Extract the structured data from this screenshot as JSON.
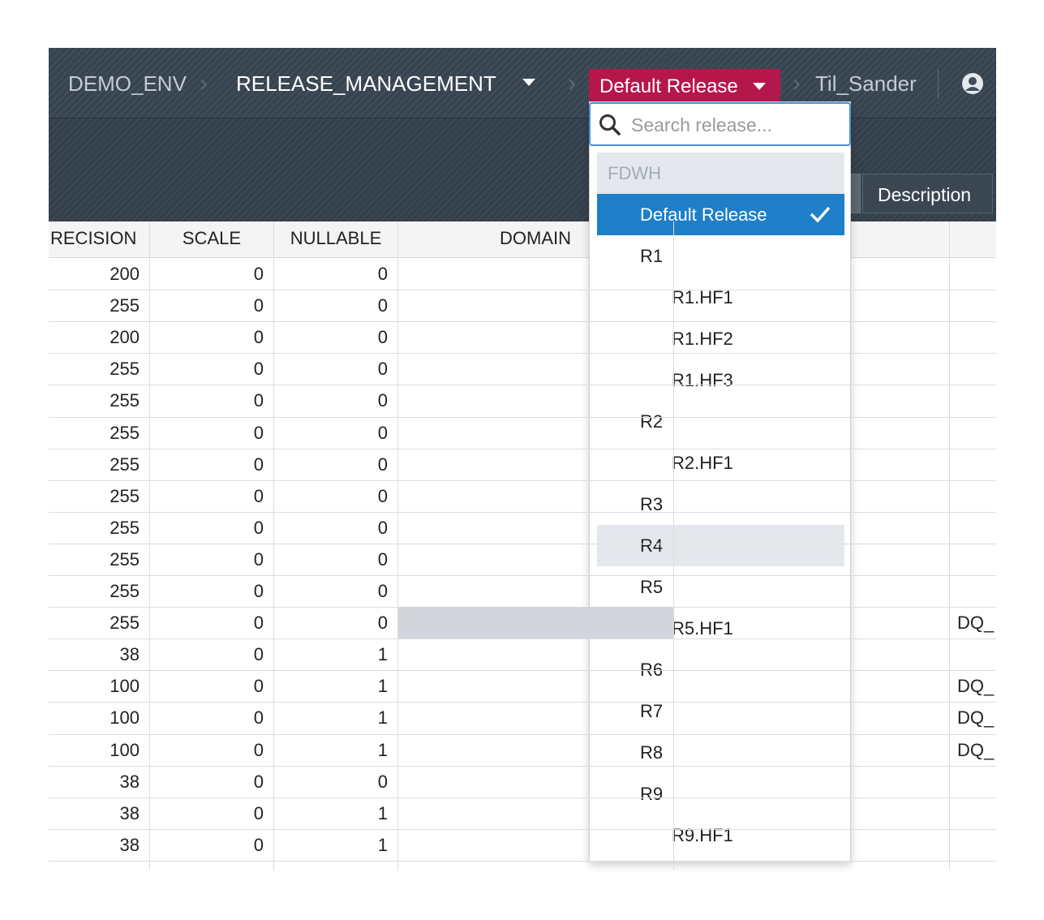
{
  "header": {
    "environment": "DEMO_ENV",
    "project": "RELEASE_MANAGEMENT",
    "release": "Default Release",
    "user": "Til_Sander"
  },
  "tabs": {
    "description": "Description"
  },
  "table": {
    "columns": [
      "RECISION",
      "SCALE",
      "NULLABLE",
      "DOMAIN"
    ],
    "rows": [
      {
        "precision": 200,
        "scale": 0,
        "nullable": 0
      },
      {
        "precision": 255,
        "scale": 0,
        "nullable": 0
      },
      {
        "precision": 200,
        "scale": 0,
        "nullable": 0
      },
      {
        "precision": 255,
        "scale": 0,
        "nullable": 0
      },
      {
        "precision": 255,
        "scale": 0,
        "nullable": 0
      },
      {
        "precision": 255,
        "scale": 0,
        "nullable": 0
      },
      {
        "precision": 255,
        "scale": 0,
        "nullable": 0
      },
      {
        "precision": 255,
        "scale": 0,
        "nullable": 0
      },
      {
        "precision": 255,
        "scale": 0,
        "nullable": 0
      },
      {
        "precision": 255,
        "scale": 0,
        "nullable": 0
      },
      {
        "precision": 255,
        "scale": 0,
        "nullable": 0
      },
      {
        "precision": 255,
        "scale": 0,
        "nullable": 0,
        "rule": "DQ_",
        "highlighted": true
      },
      {
        "precision": 38,
        "scale": 0,
        "nullable": 1
      },
      {
        "precision": 100,
        "scale": 0,
        "nullable": 1,
        "rule": "DQ_"
      },
      {
        "precision": 100,
        "scale": 0,
        "nullable": 1,
        "rule": "DQ_"
      },
      {
        "precision": 100,
        "scale": 0,
        "nullable": 1,
        "rule": "DQ_"
      },
      {
        "precision": 38,
        "scale": 0,
        "nullable": 0
      },
      {
        "precision": 38,
        "scale": 0,
        "nullable": 1
      },
      {
        "precision": 38,
        "scale": 0,
        "nullable": 1
      }
    ]
  },
  "dropdown": {
    "placeholder": "Search release...",
    "group": "FDWH",
    "releases": [
      {
        "label": "Default Release"
      },
      {
        "label": "R1",
        "children": [
          "R1.HF1",
          "R1.HF2",
          "R1.HF3"
        ]
      },
      {
        "label": "R2",
        "children": [
          "R2.HF1"
        ]
      },
      {
        "label": "R3"
      },
      {
        "label": "R4",
        "hovered": true
      },
      {
        "label": "R5",
        "children": [
          "R5.HF1"
        ]
      },
      {
        "label": "R6"
      },
      {
        "label": "R7"
      },
      {
        "label": "R8"
      },
      {
        "label": "R9",
        "children": [
          "R9.HF1"
        ]
      }
    ]
  }
}
